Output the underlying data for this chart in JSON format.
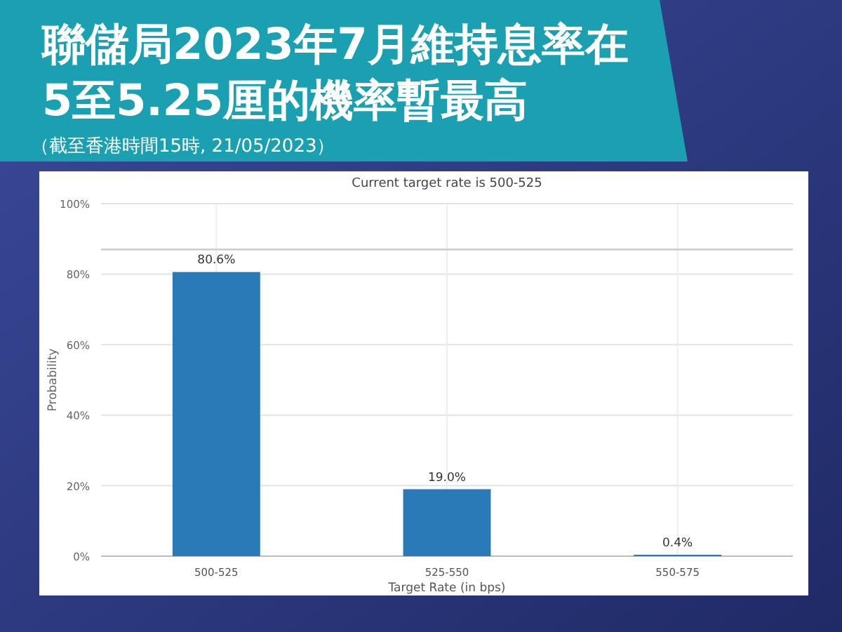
{
  "chart_data": {
    "type": "bar",
    "title": "聯儲局2023年7月維持息率在5至5.25厘的機率暫最高",
    "subtitle": "（截至香港時間15時, 21/05/2023）",
    "annotations": [
      "Current target rate is 500-525"
    ],
    "categories": [
      "500-525",
      "525-550",
      "550-575"
    ],
    "values": [
      80.6,
      19.0,
      0.4
    ],
    "value_labels": [
      "80.6%",
      "19.0%",
      "0.4%"
    ],
    "color": "#2a7ab8",
    "xlabel": "Target Rate (in bps)",
    "ylabel": "Probability",
    "ylim": [
      0,
      100
    ],
    "yticks": [
      {
        "value": 0,
        "label": "0%"
      },
      {
        "value": 20,
        "label": "20%"
      },
      {
        "value": 40,
        "label": "40%"
      },
      {
        "value": 60,
        "label": "60%"
      },
      {
        "value": 80,
        "label": "80%"
      },
      {
        "value": 100,
        "label": "100%"
      }
    ],
    "ref_lines": [
      {
        "axis": "y",
        "value": 87,
        "color": "#cccccc"
      }
    ],
    "grid": true
  }
}
